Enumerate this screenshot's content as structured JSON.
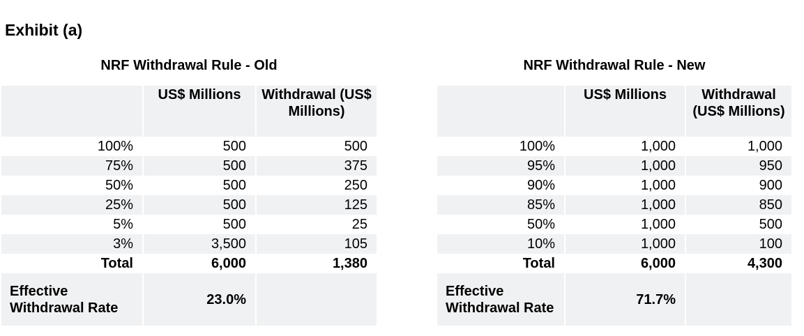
{
  "title": "Exhibit (a)",
  "tables": [
    {
      "heading": "NRF Withdrawal Rule - Old",
      "columns": [
        "US$ Millions",
        "Withdrawal (US$ Millions)"
      ],
      "rows": [
        [
          "100%",
          "500",
          "500"
        ],
        [
          "75%",
          "500",
          "375"
        ],
        [
          "50%",
          "500",
          "250"
        ],
        [
          "25%",
          "500",
          "125"
        ],
        [
          "5%",
          "500",
          "25"
        ],
        [
          "3%",
          "3,500",
          "105"
        ]
      ],
      "total": [
        "Total",
        "6,000",
        "1,380"
      ],
      "effective": {
        "label": "Effective Withdrawal Rate",
        "value": "23.0%"
      }
    },
    {
      "heading": "NRF Withdrawal Rule - New",
      "columns": [
        "US$ Millions",
        "Withdrawal (US$ Millions)"
      ],
      "rows": [
        [
          "100%",
          "1,000",
          "1,000"
        ],
        [
          "95%",
          "1,000",
          "950"
        ],
        [
          "90%",
          "1,000",
          "900"
        ],
        [
          "85%",
          "1,000",
          "850"
        ],
        [
          "50%",
          "1,000",
          "500"
        ],
        [
          "10%",
          "1,000",
          "100"
        ]
      ],
      "total": [
        "Total",
        "6,000",
        "4,300"
      ],
      "effective": {
        "label": "Effective Withdrawal Rate",
        "value": "71.7%"
      }
    }
  ]
}
